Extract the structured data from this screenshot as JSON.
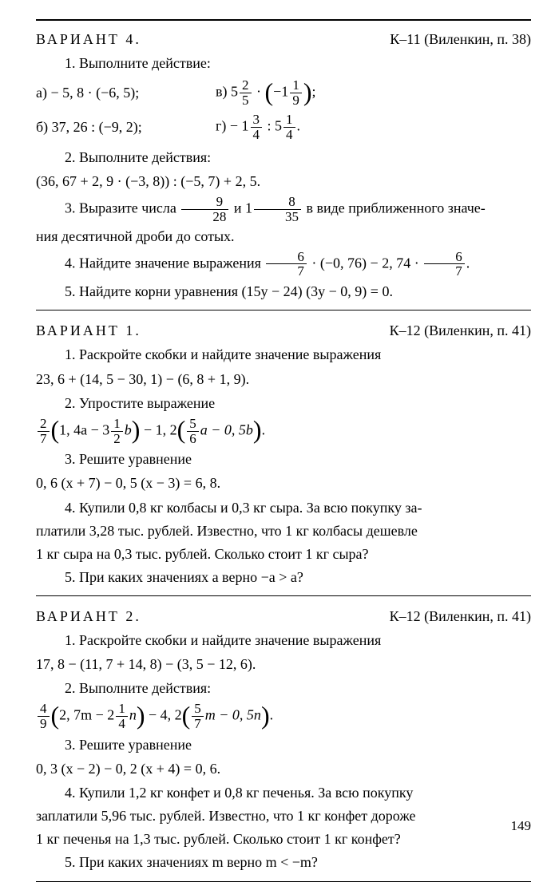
{
  "colors": {
    "text": "#000000",
    "bg": "#ffffff",
    "rule": "#000000"
  },
  "page_number": "149",
  "section1": {
    "variant_label": "ВАРИАНТ 4.",
    "ref": "К–11 (Виленкин, п. 38)",
    "t1_intro": "1. Выполните действие:",
    "t1a": "а) − 5, 8 · (−6, 5);",
    "t1v_pre": "в) 5",
    "t1v_n1": "2",
    "t1v_d1": "5",
    "t1v_mid": " · ",
    "t1v_lp": "(",
    "t1v_neg": "−1",
    "t1v_n2": "1",
    "t1v_d2": "9",
    "t1v_rp": ")",
    "t1v_end": ";",
    "t1b": "б) 37, 26 : (−9, 2);",
    "t1g_pre": "г) − 1",
    "t1g_n1": "3",
    "t1g_d1": "4",
    "t1g_mid": " : 5",
    "t1g_n2": "1",
    "t1g_d2": "4",
    "t1g_end": ".",
    "t2_intro": "2. Выполните действия:",
    "t2_expr": "(36, 67 + 2, 9 · (−3, 8)) : (−5, 7) + 2, 5.",
    "t3_a": "3. Выразите числа ",
    "t3_n1": "9",
    "t3_d1": "28",
    "t3_b": " и 1",
    "t3_n2": "8",
    "t3_d2": "35",
    "t3_c": " в виде приближенного значе-",
    "t3_line2": "ния десятичной дроби до сотых.",
    "t4_a": "4. Найдите значение выражения  ",
    "t4_n1": "6",
    "t4_d1": "7",
    "t4_b": " · (−0, 76) − 2, 74 · ",
    "t4_n2": "6",
    "t4_d2": "7",
    "t4_c": ".",
    "t5": "5. Найдите корни уравнения (15y − 24) (3y − 0, 9) = 0."
  },
  "section2": {
    "variant_label": "ВАРИАНТ 1.",
    "ref": "К–12 (Виленкин, п. 41)",
    "t1_intro": "1. Раскройте скобки и найдите значение выражения",
    "t1_expr": "23, 6 + (14, 5 − 30, 1) − (6, 8 + 1, 9).",
    "t2_intro": "2. Упростите выражение",
    "t2_n1": "2",
    "t2_d1": "7",
    "t2_b": "1, 4a − 3",
    "t2_n2": "1",
    "t2_d2": "2",
    "t2_c": "b",
    "t2_d": " − 1, 2",
    "t2_n3": "5",
    "t2_d3": "6",
    "t2_e": "a − 0, 5b",
    "t2_f": ".",
    "t3_intro": "3. Решите уравнение",
    "t3_expr": "0, 6 (x + 7) − 0, 5 (x − 3) = 6, 8.",
    "t4_l1": "4. Купили 0,8 кг колбасы и 0,3 кг сыра. За всю покупку за-",
    "t4_l2": "платили 3,28 тыс. рублей. Известно, что 1 кг колбасы дешевле",
    "t4_l3": "1 кг сыра на 0,3 тыс. рублей. Сколько стоит 1 кг сыра?",
    "t5": "5. При каких значениях a верно  −a > a?"
  },
  "section3": {
    "variant_label": "ВАРИАНТ 2.",
    "ref": "К–12 (Виленкин, п. 41)",
    "t1_intro": "1. Раскройте скобки и найдите значение выражения",
    "t1_expr": "17, 8 − (11, 7 + 14, 8) − (3, 5 − 12, 6).",
    "t2_intro": "2. Выполните действия:",
    "t2_n1": "4",
    "t2_d1": "9",
    "t2_b": "2, 7m − 2",
    "t2_n2": "1",
    "t2_d2": "4",
    "t2_c": "n",
    "t2_d": " − 4, 2",
    "t2_n3": "5",
    "t2_d3": "7",
    "t2_e": "m − 0, 5n",
    "t2_f": ".",
    "t3_intro": "3. Решите уравнение",
    "t3_expr": "0, 3 (x − 2) − 0, 2 (x + 4) = 0, 6.",
    "t4_l1": "4. Купили 1,2 кг конфет и 0,8 кг печенья. За всю покупку",
    "t4_l2": "заплатили 5,96 тыс. рублей. Известно, что 1 кг конфет дороже",
    "t4_l3": "1 кг печенья на 1,3 тыс. рублей. Сколько стоит 1 кг конфет?",
    "t5": "5. При каких значениях m верно  m < −m?"
  }
}
